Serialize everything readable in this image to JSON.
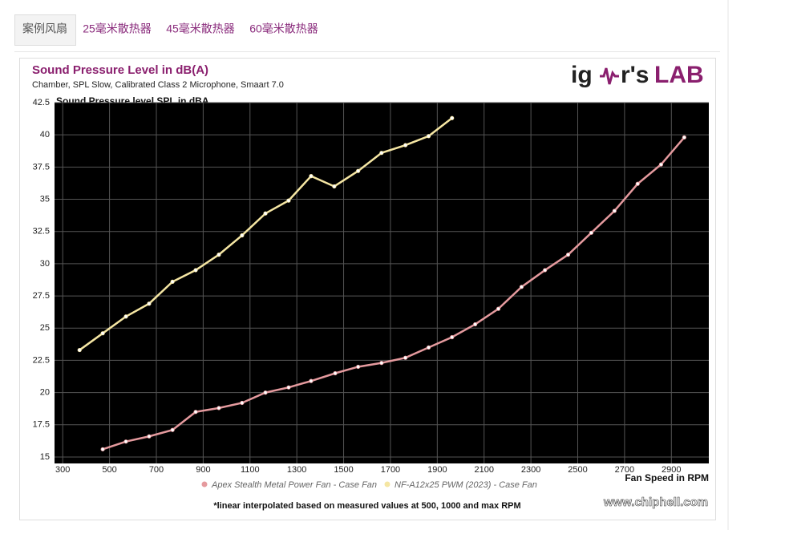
{
  "tabs": [
    "案例风扇",
    "25毫米散热器",
    "45毫米散热器",
    "60毫米散热器"
  ],
  "chart_data": {
    "type": "line",
    "title": "Sound Pressure Level in dB(A)",
    "subtitle": "Chamber, SPL Slow, Calibrated Class 2 Microphone, Smaart 7.0",
    "logo": {
      "left": "ig",
      "right": "r's",
      "lab": "LAB"
    },
    "y_label": "Sound Pressure level SPL in dBA",
    "x_label": "Fan Speed in RPM",
    "footnote": "*linear interpolated based on measured values at 500, 1000 and max RPM",
    "watermark": "www.chiphell.com",
    "xlim": [
      265,
      3060
    ],
    "ylim": [
      14.5,
      42.5
    ],
    "xticks": [
      300,
      500,
      700,
      900,
      1100,
      1300,
      1500,
      1700,
      1900,
      2100,
      2300,
      2500,
      2700,
      2900
    ],
    "yticks": [
      15,
      17.5,
      20,
      22.5,
      25,
      27.5,
      30,
      32.5,
      35,
      37.5,
      40,
      42.5
    ],
    "grid": true,
    "series": [
      {
        "name": "Apex Stealth Metal Power Fan - Case Fan",
        "color": "#e59a9e",
        "x": [
          471,
          570,
          669,
          769,
          868,
          967,
          1066,
          1166,
          1265,
          1361,
          1464,
          1562,
          1662,
          1764,
          1863,
          1963,
          2062,
          2161,
          2260,
          2360,
          2459,
          2558,
          2657,
          2756,
          2856,
          2955
        ],
        "values": [
          15.6,
          16.2,
          16.6,
          17.1,
          18.5,
          18.8,
          19.2,
          20.0,
          20.4,
          20.9,
          21.5,
          22.0,
          22.3,
          22.7,
          23.5,
          24.3,
          25.3,
          26.5,
          28.2,
          29.5,
          30.7,
          32.4,
          34.1,
          36.2,
          37.7,
          39.8
        ]
      },
      {
        "name": "NF-A12x25 PWM (2023) - Case Fan",
        "color": "#f5e6a3",
        "x": [
          372,
          471,
          570,
          669,
          769,
          868,
          967,
          1066,
          1166,
          1265,
          1361,
          1460,
          1562,
          1662,
          1764,
          1863,
          1963
        ],
        "values": [
          23.3,
          24.6,
          25.9,
          26.9,
          28.6,
          29.5,
          30.7,
          32.2,
          33.9,
          34.9,
          36.8,
          36.0,
          37.2,
          38.6,
          39.2,
          39.9,
          41.3
        ]
      }
    ]
  }
}
